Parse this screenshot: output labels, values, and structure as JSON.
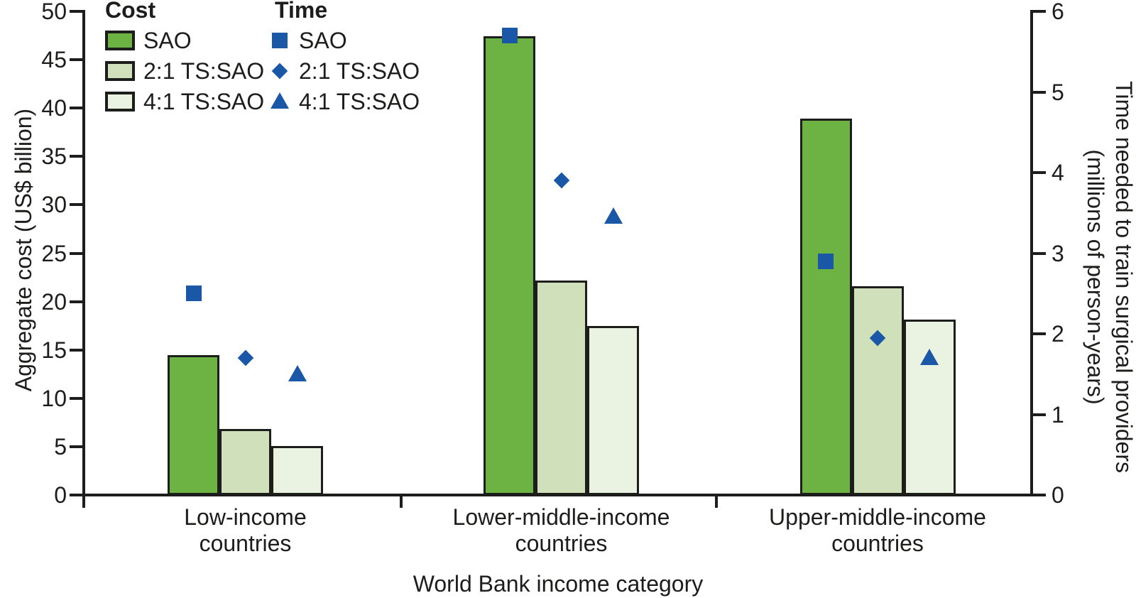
{
  "figure": {
    "left_axis_title": "Aggregate cost (US$ billion)",
    "right_axis_title_line1": "Time needed to train surgical providers",
    "right_axis_title_line2": "(millions of person-years)",
    "x_axis_title": "World Bank income category"
  },
  "legend": {
    "cost_header": "Cost",
    "time_header": "Time"
  },
  "chart_data": {
    "type": "bar",
    "subtype": "dual-axis grouped bars with scatter markers",
    "categories": [
      "Low-income countries",
      "Lower-middle-income countries",
      "Upper-middle-income countries"
    ],
    "x_category_lines": [
      [
        "Low-income",
        "countries"
      ],
      [
        "Lower-middle-income",
        "countries"
      ],
      [
        "Upper-middle-income",
        "countries"
      ]
    ],
    "xlabel": "World Bank income category",
    "left_axis": {
      "label": "Aggregate cost (US$ billion)",
      "range": [
        0,
        50
      ],
      "ticks": [
        0,
        5,
        10,
        15,
        20,
        25,
        30,
        35,
        40,
        45,
        50
      ]
    },
    "right_axis": {
      "label": "Time needed to train surgical providers (millions of person-years)",
      "range": [
        0,
        6
      ],
      "ticks": [
        0,
        1,
        2,
        3,
        4,
        5,
        6
      ]
    },
    "grid": false,
    "legend_position": "top-left",
    "cost_series_usd_billion": [
      {
        "name": "SAO",
        "color": "#6db344",
        "values": [
          14.5,
          47.4,
          38.9
        ]
      },
      {
        "name": "2:1 TS:SAO",
        "color": "#cfe0ba",
        "values": [
          6.8,
          22.2,
          21.6
        ]
      },
      {
        "name": "4:1 TS:SAO",
        "color": "#eaf2e2",
        "values": [
          5.1,
          17.5,
          18.1
        ]
      }
    ],
    "time_series_million_person_years": [
      {
        "name": "SAO",
        "marker": "square",
        "color": "#1a58a7",
        "values": [
          2.5,
          5.7,
          2.9
        ]
      },
      {
        "name": "2:1 TS:SAO",
        "marker": "diamond",
        "color": "#1a58a7",
        "values": [
          1.7,
          3.9,
          1.95
        ]
      },
      {
        "name": "4:1 TS:SAO",
        "marker": "triangle",
        "color": "#1a58a7",
        "values": [
          1.5,
          3.45,
          1.7
        ]
      }
    ]
  },
  "colors": {
    "sao_green": "#6db344",
    "ts21_green": "#cfe0ba",
    "ts41_green": "#eaf2e2",
    "time_blue": "#1a58a7",
    "ink": "#1d1d1b"
  }
}
